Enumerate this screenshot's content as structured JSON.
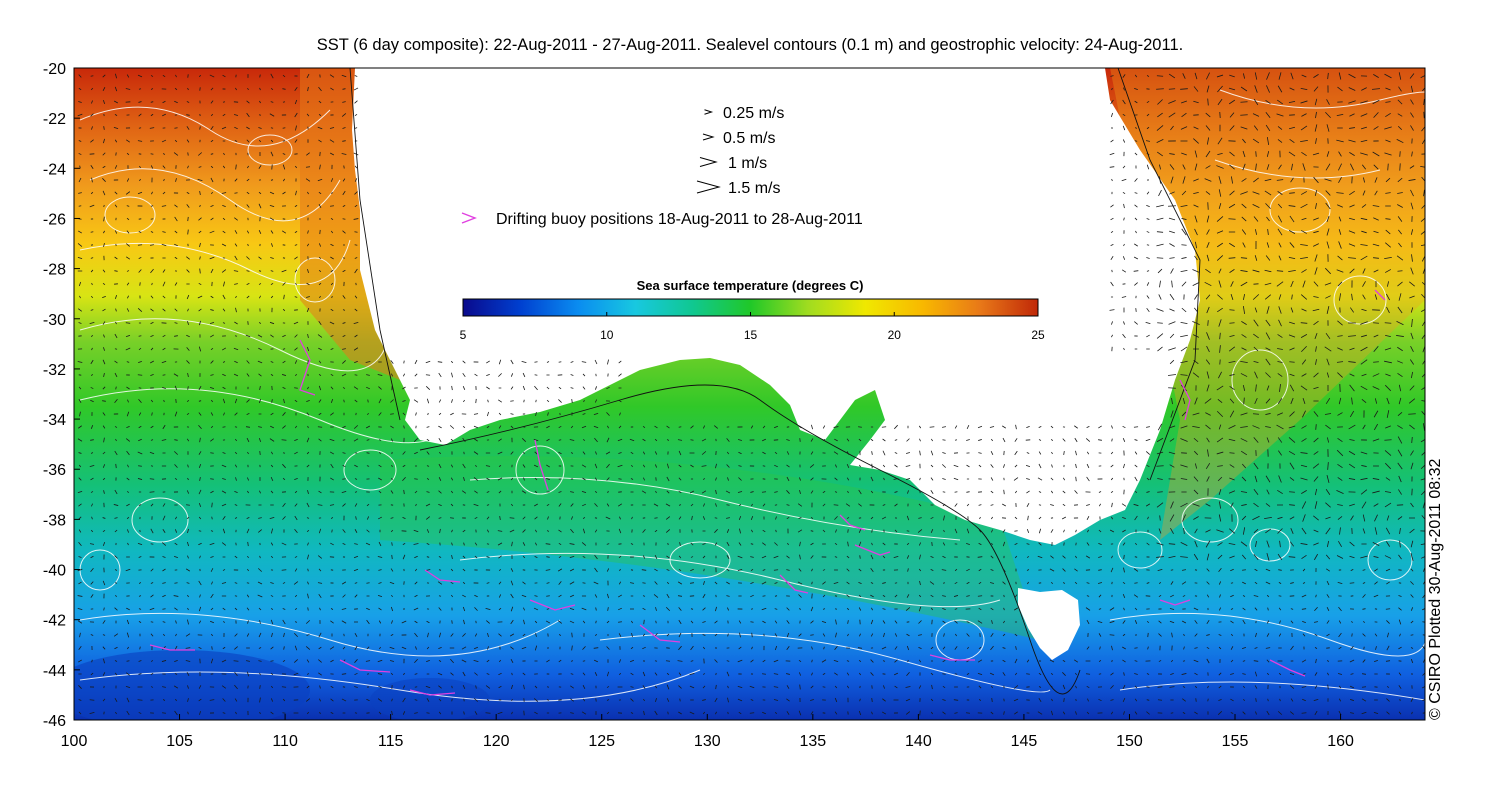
{
  "title": "SST (6 day composite): 22-Aug-2011 - 27-Aug-2011. Sealevel contours (0.1 m) and geostrophic velocity: 24-Aug-2011.",
  "velocity_legend": [
    {
      "label": "0.25 m/s",
      "scale": 0.25
    },
    {
      "label": "0.5 m/s",
      "scale": 0.5
    },
    {
      "label": "1 m/s",
      "scale": 1.0
    },
    {
      "label": "1.5 m/s",
      "scale": 1.5
    }
  ],
  "buoy_legend": {
    "label": "Drifting buoy positions 18-Aug-2011 to 28-Aug-2011",
    "color": "#e040e0"
  },
  "colorbar": {
    "title": "Sea surface temperature (degrees C)",
    "ticks": [
      "5",
      "10",
      "15",
      "20",
      "25"
    ],
    "range": [
      5,
      25
    ],
    "colors": [
      "#0a0a8c",
      "#0040d0",
      "#0a8cf0",
      "#18c8e0",
      "#10c890",
      "#20c828",
      "#a0dc20",
      "#f0e800",
      "#f8b800",
      "#e87818",
      "#c02808"
    ]
  },
  "credit": "© CSIRO Plotted 30-Aug-2011 08:32",
  "map": {
    "lon_ticks": [
      "100",
      "105",
      "110",
      "115",
      "120",
      "125",
      "130",
      "135",
      "140",
      "145",
      "150",
      "155",
      "160"
    ],
    "lat_ticks": [
      "-20",
      "-22",
      "-24",
      "-26",
      "-28",
      "-30",
      "-32",
      "-34",
      "-36",
      "-38",
      "-40",
      "-42",
      "-44",
      "-46"
    ],
    "lon_range": [
      100,
      164
    ],
    "lat_range": [
      -46,
      -20
    ],
    "land_color": "#ffffff",
    "contour_color": "#ffffff",
    "arrow_color": "#1a1a1a",
    "buoy_color": "#e040e0"
  }
}
